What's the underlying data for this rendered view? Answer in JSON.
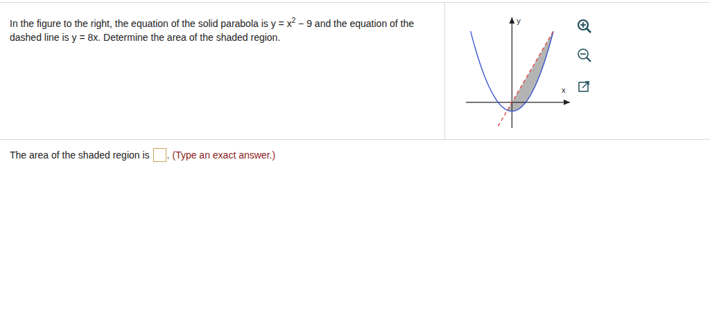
{
  "question": {
    "prefix": "In the figure to the right, the equation of the solid parabola is y = x",
    "exponent": "2",
    "suffix": " − 9 and the equation of the dashed line is y = 8x. Determine the area of the shaded region."
  },
  "chart_data": {
    "type": "line",
    "x_label": "x",
    "y_label": "y",
    "xlim": [
      -10,
      12.6
    ],
    "ylim": [
      -26,
      86
    ],
    "tick_labels": false,
    "series": [
      {
        "x": [
          -9,
          -8,
          -7,
          -6,
          -5,
          -4,
          -3,
          -2,
          -1,
          0,
          1,
          2,
          3,
          4,
          5,
          6,
          7,
          8,
          9
        ],
        "values": [
          72,
          55,
          40,
          27,
          16,
          7,
          0,
          -5,
          -8,
          -9,
          -8,
          -5,
          0,
          7,
          16,
          27,
          40,
          55,
          72
        ],
        "color": "#2f4fd0",
        "line_style": "solid"
      },
      {
        "x": [
          -3,
          -2,
          -1,
          0,
          1,
          2,
          3,
          4,
          5,
          6,
          7,
          8,
          9
        ],
        "values": [
          -24,
          -16,
          -8,
          0,
          8,
          16,
          24,
          32,
          40,
          48,
          56,
          64,
          72
        ],
        "color": "#e8383d",
        "line_style": "dashed"
      }
    ],
    "shaded_region": {
      "x": [
        -1,
        0,
        1,
        2,
        3,
        4,
        5,
        6,
        7,
        8,
        9
      ],
      "lower": [
        -8,
        -9,
        -8,
        -5,
        0,
        7,
        16,
        27,
        40,
        55,
        72
      ],
      "upper": [
        -8,
        0,
        8,
        16,
        24,
        32,
        40,
        48,
        56,
        64,
        72
      ],
      "color": "#b4b4b4"
    }
  },
  "answer": {
    "prefix": "The area of the shaded region is",
    "suffix": ".",
    "hint": "(Type an exact answer.)"
  }
}
